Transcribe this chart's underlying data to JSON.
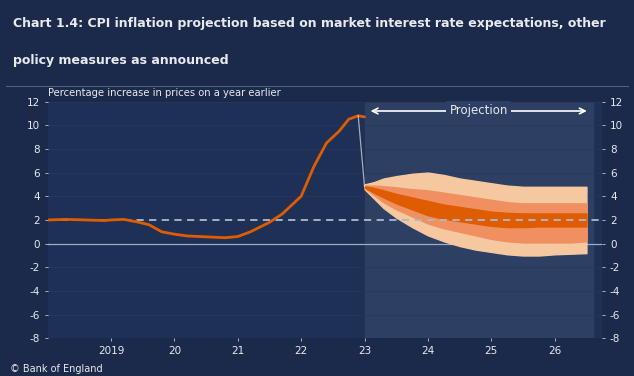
{
  "title_line1": "Chart 1.4: CPI inflation projection based on market interest rate expectations, other",
  "title_line2": "policy measures as announced",
  "ylabel": "Percentage increase in prices on a year earlier",
  "footer": "© Bank of England",
  "bg_color": "#1b2a4a",
  "plot_bg_color": "#1e3055",
  "projection_bg_color": "#2d3f62",
  "ylim": [
    -8,
    12
  ],
  "yticks": [
    -8,
    -6,
    -4,
    -2,
    0,
    2,
    4,
    6,
    8,
    10,
    12
  ],
  "target_line_y": 2,
  "projection_start_x": 23.0,
  "projection_end_x": 26.6,
  "historical_x": [
    18.0,
    18.3,
    18.6,
    18.9,
    19.0,
    19.2,
    19.4,
    19.6,
    19.8,
    20.0,
    20.2,
    20.4,
    20.6,
    20.8,
    21.0,
    21.2,
    21.5,
    21.7,
    22.0,
    22.2,
    22.4,
    22.6,
    22.75,
    22.9,
    23.0
  ],
  "historical_y": [
    2.0,
    2.05,
    2.0,
    1.95,
    2.0,
    2.05,
    1.85,
    1.6,
    1.0,
    0.8,
    0.65,
    0.6,
    0.55,
    0.5,
    0.6,
    1.0,
    1.8,
    2.5,
    4.0,
    6.5,
    8.5,
    9.5,
    10.5,
    10.8,
    10.7
  ],
  "proj_x": [
    23.0,
    23.15,
    23.3,
    23.5,
    23.75,
    24.0,
    24.25,
    24.5,
    24.75,
    25.0,
    25.25,
    25.5,
    25.75,
    26.0,
    26.25,
    26.5
  ],
  "proj_central": [
    4.8,
    4.5,
    4.2,
    3.8,
    3.4,
    3.0,
    2.7,
    2.5,
    2.3,
    2.1,
    2.0,
    2.0,
    2.0,
    2.0,
    2.0,
    2.0
  ],
  "proj_band1_upper": [
    4.85,
    4.7,
    4.5,
    4.2,
    3.9,
    3.6,
    3.3,
    3.1,
    2.9,
    2.7,
    2.6,
    2.55,
    2.55,
    2.55,
    2.55,
    2.55
  ],
  "proj_band1_lower": [
    4.75,
    4.3,
    3.9,
    3.4,
    2.9,
    2.4,
    2.1,
    1.9,
    1.7,
    1.5,
    1.4,
    1.4,
    1.45,
    1.45,
    1.45,
    1.45
  ],
  "proj_band2_upper": [
    4.9,
    4.9,
    4.85,
    4.75,
    4.6,
    4.5,
    4.3,
    4.1,
    3.9,
    3.7,
    3.5,
    3.4,
    3.4,
    3.4,
    3.4,
    3.4
  ],
  "proj_band2_lower": [
    4.7,
    4.1,
    3.5,
    2.9,
    2.3,
    1.7,
    1.3,
    1.0,
    0.7,
    0.4,
    0.2,
    0.1,
    0.1,
    0.1,
    0.1,
    0.2
  ],
  "proj_band3_upper": [
    5.0,
    5.2,
    5.5,
    5.7,
    5.9,
    6.0,
    5.8,
    5.5,
    5.3,
    5.1,
    4.9,
    4.8,
    4.8,
    4.8,
    4.8,
    4.8
  ],
  "proj_band3_lower": [
    4.6,
    3.8,
    3.0,
    2.2,
    1.4,
    0.7,
    0.2,
    -0.2,
    -0.5,
    -0.7,
    -0.9,
    -1.0,
    -1.0,
    -0.9,
    -0.85,
    -0.8
  ],
  "color_line": "#e05c00",
  "color_band1": "#e05c00",
  "color_band2": "#f09060",
  "color_band3": "#f5c8a0",
  "dashed_line_color": "#aabbcc",
  "text_color": "#e8eaf0",
  "grid_color": "#263a5e",
  "xlim_left": 18.0,
  "xlim_right": 26.75,
  "xtick_labels": [
    "2019",
    "20",
    "21",
    "22",
    "23",
    "24",
    "25",
    "26"
  ],
  "xtick_positions": [
    19.0,
    20.0,
    21.0,
    22.0,
    23.0,
    24.0,
    25.0,
    26.0
  ]
}
